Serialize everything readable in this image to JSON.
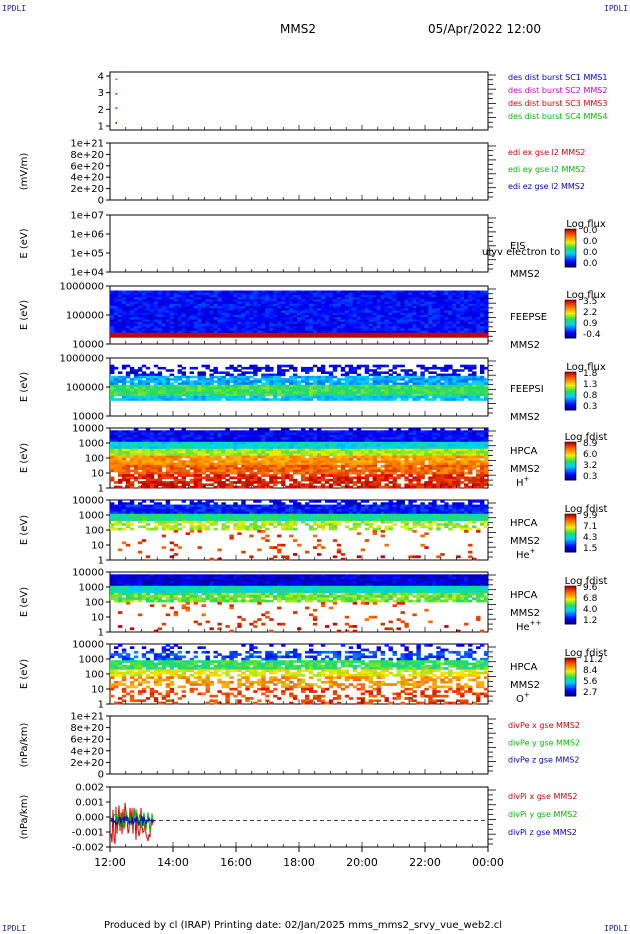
{
  "header": {
    "corner_tl": "IPDLI",
    "corner_tr": "IPDLI",
    "corner_bl": "IPDLI",
    "corner_br": "IPDLI",
    "mission": "MMS2",
    "datetime": "05/Apr/2022 12:00"
  },
  "footer": {
    "text": "Produced by cl (IRAP)   Printing date: 02/Jan/2025   mms_mms2_srvy_vue_web2.cl"
  },
  "colors": {
    "mms1": "#0000cc",
    "mms2": "#cc00cc",
    "mms3": "#dd0000",
    "mms4": "#00bb00",
    "red": "#dd0000",
    "green": "#00bb00",
    "blue": "#0000cc"
  },
  "chart_data": [
    {
      "type": "scatter",
      "id": "burst",
      "ylabel": "",
      "yticks": [
        "4",
        "3",
        "2",
        "1"
      ],
      "ylim": [
        0.5,
        4.5
      ],
      "xlim_hours": [
        12,
        24
      ],
      "points": [
        {
          "x": 12.2,
          "y": 4,
          "color": "#00bb00"
        },
        {
          "x": 12.2,
          "y": 3,
          "color": "#dd0000"
        },
        {
          "x": 12.2,
          "y": 2,
          "color": "#cc00cc"
        },
        {
          "x": 12.2,
          "y": 1,
          "color": "#0000cc"
        }
      ],
      "legend": [
        {
          "text": "des dist burst SC1 MMS1",
          "color": "#0000cc"
        },
        {
          "text": "des dist burst SC2 MMS2",
          "color": "#cc00cc"
        },
        {
          "text": "des dist burst SC3 MMS3",
          "color": "#dd0000"
        },
        {
          "text": "des dist burst SC4 MMS4",
          "color": "#00bb00"
        }
      ]
    },
    {
      "type": "line",
      "id": "edi",
      "ylabel": "(mV/m)",
      "yticks": [
        "1e+21",
        "8e+20",
        "6e+20",
        "4e+20",
        "2e+20",
        "0"
      ],
      "ylim": [
        0,
        1e+21
      ],
      "zero_line": true,
      "legend": [
        {
          "text": "edi ex gse l2 MMS2",
          "color": "#dd0000"
        },
        {
          "text": "edi ey gse l2 MMS2",
          "color": "#00bb00"
        },
        {
          "text": "edi ez gse l2 MMS2",
          "color": "#0000cc"
        }
      ]
    },
    {
      "type": "heatmap",
      "id": "eis",
      "ylabel": "E (eV)",
      "yticks": [
        "1e+07",
        "1e+06",
        "1e+05",
        "1e+04"
      ],
      "ylim": [
        10000,
        10000000
      ],
      "log_y": true,
      "fill": "none",
      "instrument": "EIS",
      "spacecraft": "MMS2",
      "species": "",
      "overlay": "ulyv electron to",
      "colorbar": {
        "title": "Log flux",
        "ticks": [
          "0.0",
          "0.0",
          "0.0",
          "0.0"
        ]
      }
    },
    {
      "type": "heatmap",
      "id": "feepse",
      "ylabel": "E (eV)",
      "yticks": [
        "1000000",
        "100000",
        "10000"
      ],
      "ylim": [
        10000,
        1000000
      ],
      "log_y": true,
      "fill": "feepse",
      "instrument": "FEEPSE",
      "spacecraft": "MMS2",
      "species": "",
      "colorbar": {
        "title": "Log flux",
        "ticks": [
          "3.5",
          "2.2",
          "0.9",
          "-0.4"
        ]
      }
    },
    {
      "type": "heatmap",
      "id": "feepsi",
      "ylabel": "E (eV)",
      "yticks": [
        "1000000",
        "100000",
        "10000"
      ],
      "ylim": [
        10000,
        1000000
      ],
      "log_y": true,
      "fill": "feepsi",
      "instrument": "FEEPSI",
      "spacecraft": "MMS2",
      "species": "",
      "colorbar": {
        "title": "Log flux",
        "ticks": [
          "1.8",
          "1.3",
          "0.8",
          "0.3"
        ]
      }
    },
    {
      "type": "heatmap",
      "id": "hpca-h",
      "ylabel": "E (eV)",
      "yticks": [
        "10000",
        "1000",
        "100",
        "10",
        "1"
      ],
      "ylim": [
        1,
        40000
      ],
      "log_y": true,
      "fill": "hpca_h",
      "instrument": "HPCA",
      "spacecraft": "MMS2",
      "species": "H",
      "species_sup": "+",
      "colorbar": {
        "title": "Log fdist",
        "ticks": [
          "8.9",
          "6.0",
          "3.2",
          "0.3"
        ]
      }
    },
    {
      "type": "heatmap",
      "id": "hpca-he",
      "ylabel": "E (eV)",
      "yticks": [
        "10000",
        "1000",
        "100",
        "10",
        "1"
      ],
      "ylim": [
        1,
        40000
      ],
      "log_y": true,
      "fill": "hpca_he",
      "instrument": "HPCA",
      "spacecraft": "MMS2",
      "species": "He",
      "species_sup": "+",
      "colorbar": {
        "title": "Log fdist",
        "ticks": [
          "9.9",
          "7.1",
          "4.3",
          "1.5"
        ]
      }
    },
    {
      "type": "heatmap",
      "id": "hpca-hepp",
      "ylabel": "E (eV)",
      "yticks": [
        "10000",
        "1000",
        "100",
        "10",
        "1"
      ],
      "ylim": [
        1,
        40000
      ],
      "log_y": true,
      "fill": "hpca_hepp",
      "instrument": "HPCA",
      "spacecraft": "MMS2",
      "species": "He",
      "species_sup": "++",
      "colorbar": {
        "title": "Log fdist",
        "ticks": [
          "9.6",
          "6.8",
          "4.0",
          "1.2"
        ]
      }
    },
    {
      "type": "heatmap",
      "id": "hpca-o",
      "ylabel": "E (eV)",
      "yticks": [
        "10000",
        "1000",
        "100",
        "10",
        "1"
      ],
      "ylim": [
        1,
        40000
      ],
      "log_y": true,
      "fill": "hpca_o",
      "instrument": "HPCA",
      "spacecraft": "MMS2",
      "species": "O",
      "species_sup": "+",
      "colorbar": {
        "title": "Log fdist",
        "ticks": [
          "11.2",
          "8.4",
          "5.6",
          "2.7"
        ]
      }
    },
    {
      "type": "line",
      "id": "divpe",
      "ylabel": "(nPa/km)",
      "yticks": [
        "1e+21",
        "8e+20",
        "6e+20",
        "4e+20",
        "2e+20",
        "0"
      ],
      "ylim": [
        0,
        1e+21
      ],
      "zero_line": true,
      "legend": [
        {
          "text": "divPe x gse MMS2",
          "color": "#dd0000"
        },
        {
          "text": "divPe y gse MMS2",
          "color": "#00bb00"
        },
        {
          "text": "divPe z gse MMS2",
          "color": "#0000cc"
        }
      ]
    },
    {
      "type": "line",
      "id": "divpi",
      "ylabel": "(nPa/km)",
      "yticks": [
        "0.002",
        "0.001",
        "0.000",
        "-0.001",
        "-0.002"
      ],
      "ylim": [
        -0.0022,
        0.0028
      ],
      "zero_line": true,
      "trace_end_hour": 13.4,
      "series": [
        {
          "name": "divPi x gse MMS2",
          "amplitude": 0.0022,
          "color": "#dd0000"
        },
        {
          "name": "divPi y gse MMS2",
          "amplitude": 0.0012,
          "color": "#00bb00"
        },
        {
          "name": "divPi z gse MMS2",
          "amplitude": 0.0006,
          "color": "#0000cc"
        }
      ],
      "legend": [
        {
          "text": "divPi x gse MMS2",
          "color": "#dd0000"
        },
        {
          "text": "divPi y gse MMS2",
          "color": "#00bb00"
        },
        {
          "text": "divPi z gse MMS2",
          "color": "#0000cc"
        }
      ]
    }
  ],
  "x_axis": {
    "ticks": [
      {
        "hour": 12,
        "label": "12:00"
      },
      {
        "hour": 14,
        "label": "14:00"
      },
      {
        "hour": 16,
        "label": "16:00"
      },
      {
        "hour": 18,
        "label": "18:00"
      },
      {
        "hour": 20,
        "label": "20:00"
      },
      {
        "hour": 22,
        "label": "22:00"
      },
      {
        "hour": 24,
        "label": "00:00"
      }
    ],
    "range_hours": [
      12,
      24
    ]
  }
}
